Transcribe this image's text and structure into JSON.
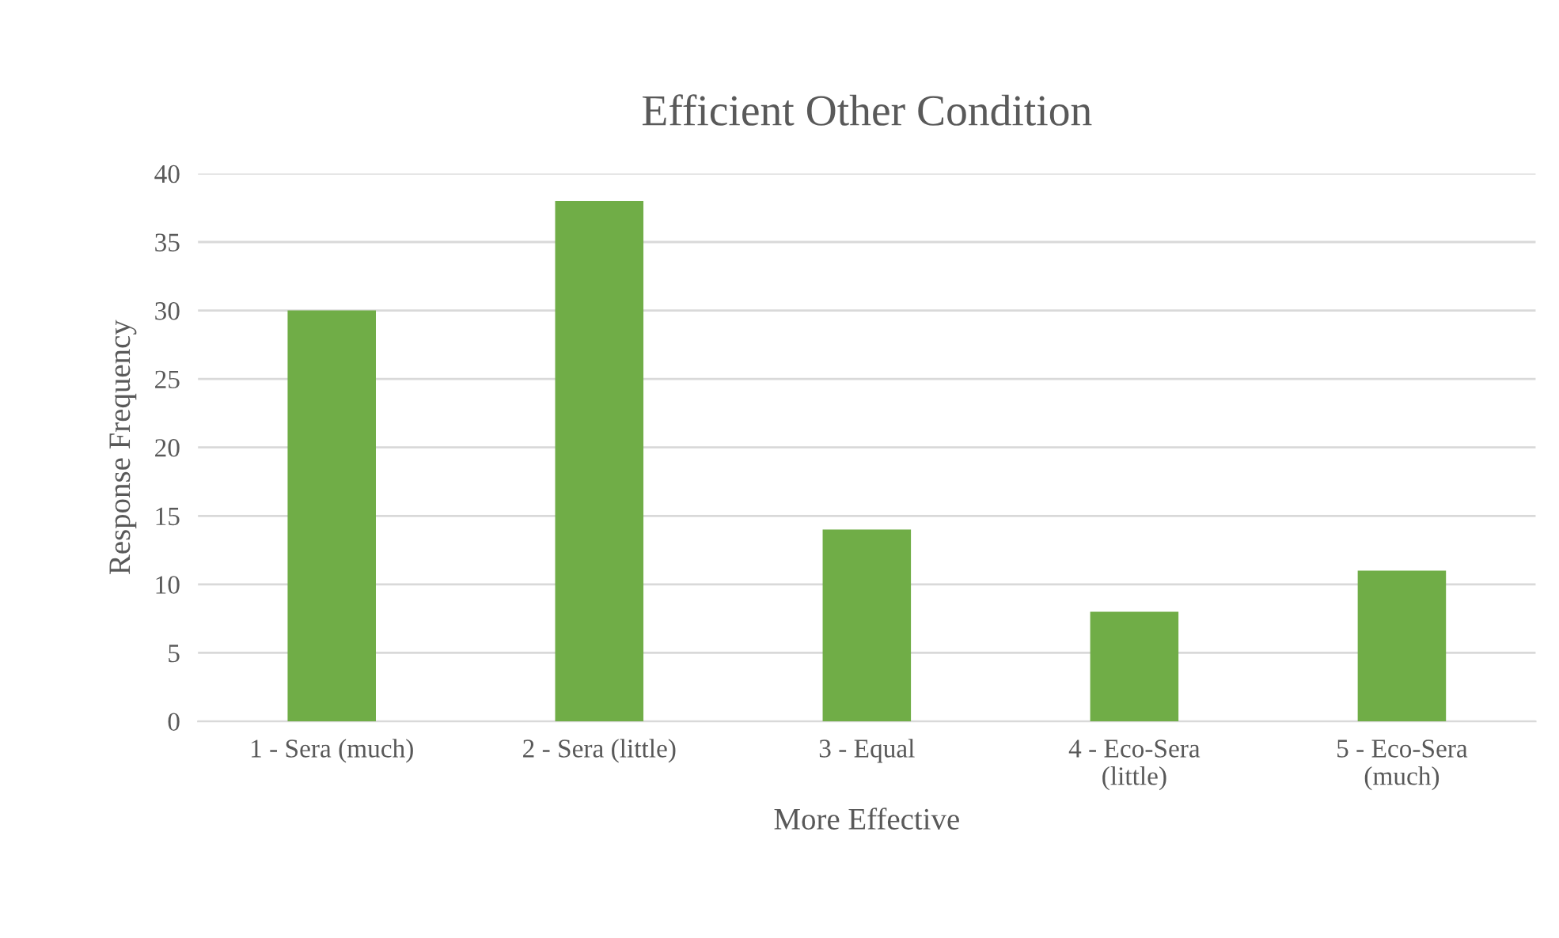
{
  "chart_data": {
    "type": "bar",
    "title": "Efficient Other Condition",
    "xlabel": "More Effective",
    "ylabel": "Response Frequency",
    "categories": [
      "1 - Sera (much)",
      "2 - Sera (little)",
      "3 - Equal",
      "4 - Eco-Sera\n(little)",
      "5 - Eco-Sera\n(much)"
    ],
    "values": [
      30,
      38,
      14,
      8,
      11
    ],
    "color": "#70ad47",
    "ylim": [
      0,
      40
    ],
    "yticks": [
      0,
      5,
      10,
      15,
      20,
      25,
      30,
      35,
      40
    ],
    "grid": "y"
  }
}
